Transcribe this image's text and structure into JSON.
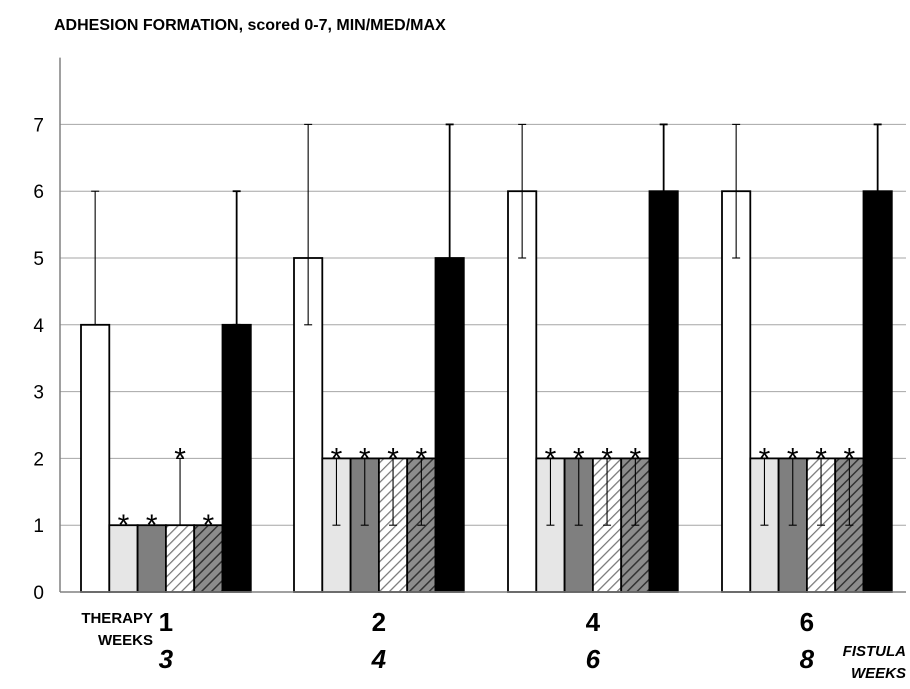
{
  "chart_data": {
    "type": "bar",
    "title": "ADHESION FORMATION, scored 0-7, MIN/MED/MAX",
    "ylim": [
      0,
      8
    ],
    "yticks": [
      "0",
      "1",
      "2",
      "3",
      "4",
      "5",
      "6",
      "7"
    ],
    "grid": true,
    "x_caption_left": [
      "THERAPY",
      "WEEKS"
    ],
    "x_caption_right": [
      "FISTULA",
      "WEEKS"
    ],
    "groups": [
      {
        "therapy_weeks": "1",
        "fistula_weeks": "3"
      },
      {
        "therapy_weeks": "2",
        "fistula_weeks": "4"
      },
      {
        "therapy_weeks": "4",
        "fistula_weeks": "6"
      },
      {
        "therapy_weeks": "6",
        "fistula_weeks": "8"
      }
    ],
    "series": [
      {
        "fill": "#ffffff",
        "pattern": "solid",
        "median": [
          4,
          5,
          6,
          6
        ],
        "min": [
          4,
          4,
          5,
          5
        ],
        "max": [
          6,
          7,
          7,
          7
        ],
        "significant": [
          false,
          false,
          false,
          false
        ]
      },
      {
        "fill": "#e6e6e6",
        "pattern": "solid",
        "median": [
          1,
          2,
          2,
          2
        ],
        "min": [
          1,
          1,
          1,
          1
        ],
        "max": [
          1,
          2,
          2,
          2
        ],
        "significant": [
          true,
          true,
          true,
          true
        ]
      },
      {
        "fill": "#7f7f7f",
        "pattern": "solid",
        "median": [
          1,
          2,
          2,
          2
        ],
        "min": [
          1,
          1,
          1,
          1
        ],
        "max": [
          1,
          2,
          2,
          2
        ],
        "significant": [
          true,
          true,
          true,
          true
        ]
      },
      {
        "fill": "#ffffff",
        "pattern": "hatch-light",
        "median": [
          1,
          2,
          2,
          2
        ],
        "min": [
          1,
          1,
          1,
          1
        ],
        "max": [
          2,
          2,
          2,
          2
        ],
        "significant": [
          true,
          true,
          true,
          true
        ]
      },
      {
        "fill": "#8c8c8c",
        "pattern": "hatch-dark",
        "median": [
          1,
          2,
          2,
          2
        ],
        "min": [
          1,
          1,
          1,
          1
        ],
        "max": [
          1,
          2,
          2,
          2
        ],
        "significant": [
          true,
          true,
          true,
          true
        ]
      },
      {
        "fill": "#000000",
        "pattern": "solid",
        "median": [
          4,
          5,
          6,
          6
        ],
        "min": [
          4,
          4,
          5,
          5
        ],
        "max": [
          6,
          7,
          7,
          7
        ],
        "significant": [
          false,
          false,
          false,
          false
        ]
      }
    ],
    "significance_marker": "*"
  }
}
